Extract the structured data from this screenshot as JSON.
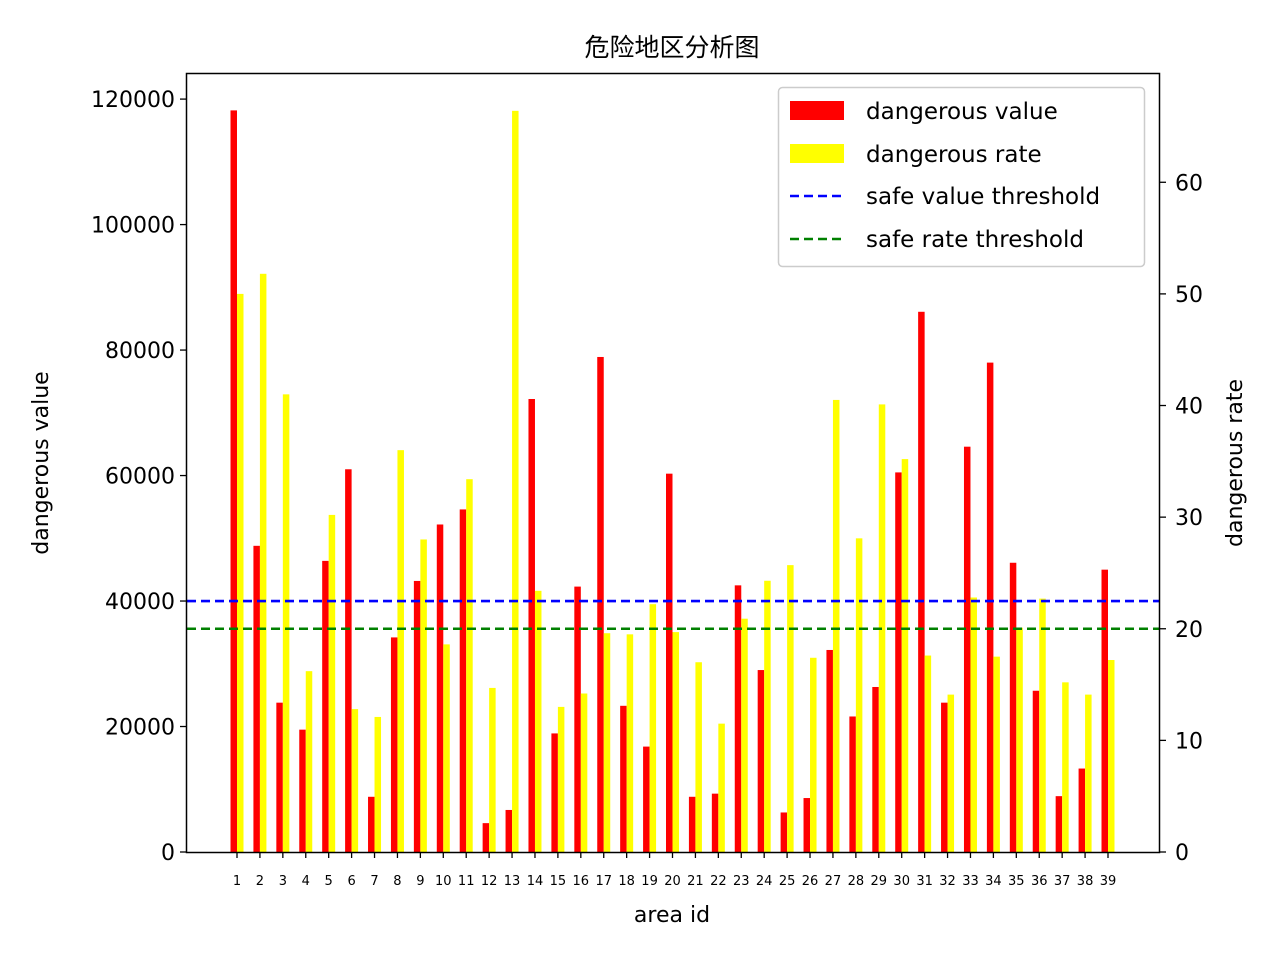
{
  "chart_data": {
    "type": "bar",
    "title": "危险地区分析图",
    "xlabel": "area id",
    "ylabel_left": "dangerous value",
    "ylabel_right": "dangerous rate",
    "ylim_left": [
      0,
      124000
    ],
    "ylim_right": [
      0,
      69.7
    ],
    "yticks_left": [
      0,
      20000,
      40000,
      60000,
      80000,
      100000,
      120000
    ],
    "yticks_right": [
      0,
      10,
      20,
      30,
      40,
      50,
      60
    ],
    "legend_position": "top-right",
    "categories": [
      "1",
      "2",
      "3",
      "4",
      "5",
      "6",
      "7",
      "8",
      "9",
      "10",
      "11",
      "12",
      "13",
      "14",
      "15",
      "16",
      "17",
      "18",
      "19",
      "20",
      "21",
      "22",
      "23",
      "24",
      "25",
      "26",
      "27",
      "28",
      "29",
      "30",
      "31",
      "32",
      "33",
      "34",
      "35",
      "36",
      "37",
      "38",
      "39"
    ],
    "series": [
      {
        "name": "dangerous value",
        "axis": "left",
        "color": "#ff0000",
        "values": [
          118200,
          48800,
          23800,
          19500,
          46400,
          61000,
          8800,
          34200,
          43200,
          52200,
          54600,
          4600,
          6700,
          72200,
          18900,
          42300,
          78900,
          23300,
          16800,
          60300,
          8800,
          9300,
          42500,
          29000,
          6300,
          8600,
          32200,
          21600,
          26300,
          60500,
          86100,
          23800,
          64600,
          78000,
          46100,
          25700,
          8900,
          13300,
          45000
        ]
      },
      {
        "name": "dangerous rate",
        "axis": "right",
        "color": "#ffff00",
        "values": [
          50.0,
          51.8,
          41.0,
          16.2,
          30.2,
          12.8,
          12.1,
          36.0,
          28.0,
          18.6,
          33.4,
          14.7,
          66.4,
          23.4,
          13.0,
          14.2,
          19.6,
          19.5,
          22.2,
          19.7,
          17.0,
          11.5,
          20.9,
          24.3,
          25.7,
          17.4,
          40.5,
          28.1,
          40.1,
          35.2,
          17.6,
          14.1,
          22.8,
          17.5,
          20.1,
          22.7,
          15.2,
          14.1,
          17.2
        ]
      }
    ],
    "thresholds": [
      {
        "name": "safe value threshold",
        "axis": "left",
        "value": 40000,
        "color": "#0000ff"
      },
      {
        "name": "safe rate threshold",
        "axis": "right",
        "value": 20,
        "color": "#008000"
      }
    ]
  }
}
